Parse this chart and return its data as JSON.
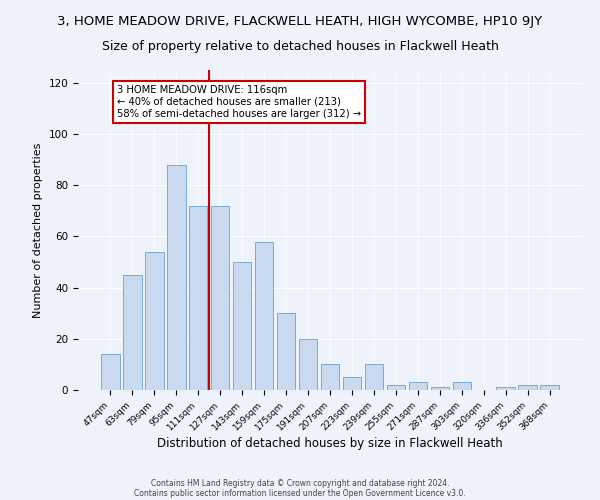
{
  "title": "3, HOME MEADOW DRIVE, FLACKWELL HEATH, HIGH WYCOMBE, HP10 9JY",
  "subtitle": "Size of property relative to detached houses in Flackwell Heath",
  "xlabel": "Distribution of detached houses by size in Flackwell Heath",
  "ylabel": "Number of detached properties",
  "bar_labels": [
    "47sqm",
    "63sqm",
    "79sqm",
    "95sqm",
    "111sqm",
    "127sqm",
    "143sqm",
    "159sqm",
    "175sqm",
    "191sqm",
    "207sqm",
    "223sqm",
    "239sqm",
    "255sqm",
    "271sqm",
    "287sqm",
    "303sqm",
    "320sqm",
    "336sqm",
    "352sqm",
    "368sqm"
  ],
  "bar_values": [
    14,
    45,
    54,
    88,
    72,
    72,
    50,
    58,
    30,
    20,
    10,
    5,
    10,
    2,
    3,
    1,
    3,
    0,
    1,
    2,
    2
  ],
  "bar_color": "#c8d9f0",
  "bar_edgecolor": "#7aaad4",
  "vline_x": 4.5,
  "vline_color": "#cc0000",
  "annotation_text": "3 HOME MEADOW DRIVE: 116sqm\n← 40% of detached houses are smaller (213)\n58% of semi-detached houses are larger (312) →",
  "annotation_box_color": "#ffffff",
  "annotation_box_edgecolor": "#cc0000",
  "ylim": [
    0,
    125
  ],
  "yticks": [
    0,
    20,
    40,
    60,
    80,
    100,
    120
  ],
  "bg_color": "#eef2fb",
  "footer_line1": "Contains HM Land Registry data © Crown copyright and database right 2024.",
  "footer_line2": "Contains public sector information licensed under the Open Government Licence v3.0.",
  "title_fontsize": 9.5,
  "subtitle_fontsize": 9,
  "xlabel_fontsize": 8.5,
  "ylabel_fontsize": 8
}
